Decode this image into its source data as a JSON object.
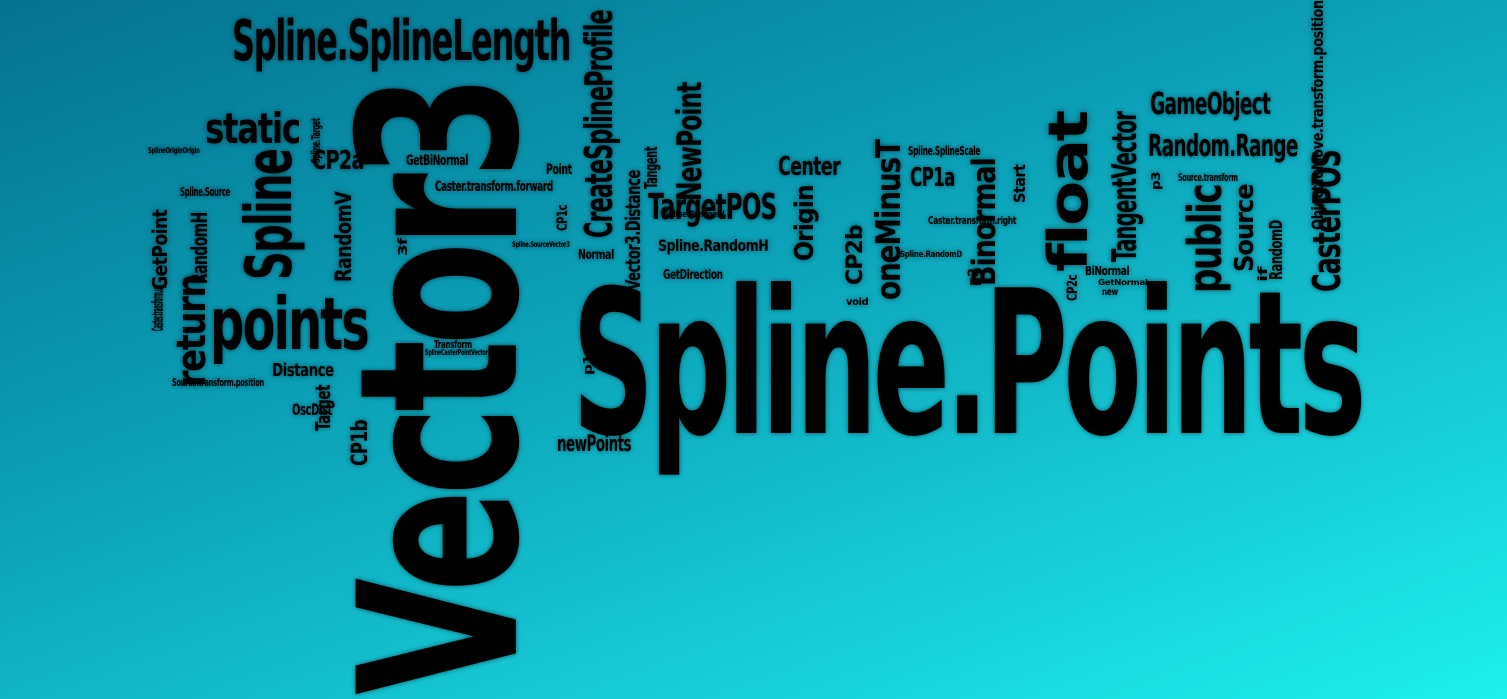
{
  "colors": {
    "gradient_start": "#05728f",
    "gradient_end": "#1df0ec",
    "text": "#000000"
  },
  "words": [
    "Vector3",
    "Spline.Points",
    "Spline.SplineLength",
    "CreateSplineProfile",
    "points",
    "Spline",
    "static",
    "return",
    "float",
    "public",
    "CasterPOS",
    "Random.Range",
    "GameObject",
    "TangentVector",
    "Source",
    "Binormal",
    "CP1a",
    "oneMinusT",
    "Center",
    "Origin",
    "CP2b",
    "TargetPOS",
    "NewPoint",
    "Vector3.Distance",
    "newPoints",
    "Distance",
    "CP2a",
    "RandomV",
    "RandomH",
    "GetPoint",
    "CP1b",
    "Target",
    "OscDist",
    "Caster.transform.forward",
    "GetBiNormal",
    "Spline.RandomH",
    "GetDirection",
    "Tangent",
    "Point",
    "Normal",
    "Spline.SplineScale",
    "Start",
    "RandomD",
    "ObjectToMove.transform.position",
    "Source.transform.position",
    "Caster.transform.right",
    "BiNormal",
    "Transform",
    "Spline.Source",
    "Source.transform",
    "Caster.transform.up",
    "CP1c",
    "CP2c",
    "void",
    "new",
    "if",
    "p1",
    "p0",
    "p2",
    "p3",
    "3f",
    "Spline.Target",
    "SplineOriginOrigin",
    "Spline.RandomV",
    "Spline.RandomD",
    "SplineCasterPointVector3",
    "GetNormal",
    "Spline.SourceVector3"
  ]
}
